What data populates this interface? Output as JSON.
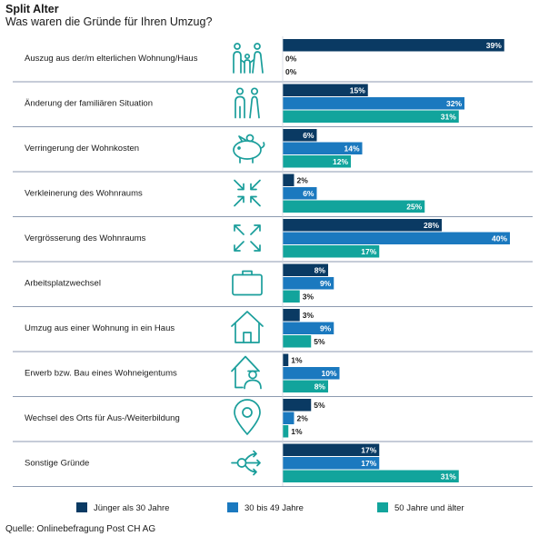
{
  "header": {
    "title": "Split Alter",
    "subtitle": "Was waren die Gründe für Ihren Umzug?"
  },
  "footer": {
    "source": "Quelle: Onlinebefragung Post CH AG"
  },
  "colors": {
    "series1": "#0a3a63",
    "series2": "#1b79bf",
    "series3": "#12a49c",
    "icon": "#1a9e9b",
    "divider": "#8c9ab0"
  },
  "chart_data": {
    "type": "bar",
    "orientation": "horizontal",
    "title": "Split Alter",
    "subtitle": "Was waren die Gründe für Ihren Umzug?",
    "unit": "%",
    "xlim": [
      0,
      40
    ],
    "grid": false,
    "legend": "bottom",
    "categories": [
      "Auszug aus der/m elterlichen Wohnung/Haus",
      "Änderung der familiären Situation",
      "Verringerung der Wohnkosten",
      "Verkleinerung des Wohnraums",
      "Vergrösserung des Wohnraums",
      "Arbeitsplatzwechsel",
      "Umzug aus einer Wohnung in ein Haus",
      "Erwerb bzw. Bau eines Wohneigentums",
      "Wechsel des Orts für Aus-/Weiterbildung",
      "Sonstige Gründe"
    ],
    "icons": [
      "family-icon",
      "couple-icon",
      "piggy-bank-icon",
      "shrink-arrows-icon",
      "expand-arrows-icon",
      "briefcase-icon",
      "house-icon",
      "house-person-icon",
      "location-pin-icon",
      "branch-arrows-icon"
    ],
    "series": [
      {
        "name": "Jünger als 30 Jahre",
        "color": "#0a3a63",
        "values": [
          39,
          15,
          6,
          2,
          28,
          8,
          3,
          1,
          5,
          17
        ]
      },
      {
        "name": "30 bis 49 Jahre",
        "color": "#1b79bf",
        "values": [
          0,
          32,
          14,
          6,
          40,
          9,
          9,
          10,
          2,
          17
        ]
      },
      {
        "name": "50 Jahre und älter",
        "color": "#12a49c",
        "values": [
          0,
          31,
          12,
          25,
          17,
          3,
          5,
          8,
          1,
          31
        ]
      }
    ]
  }
}
